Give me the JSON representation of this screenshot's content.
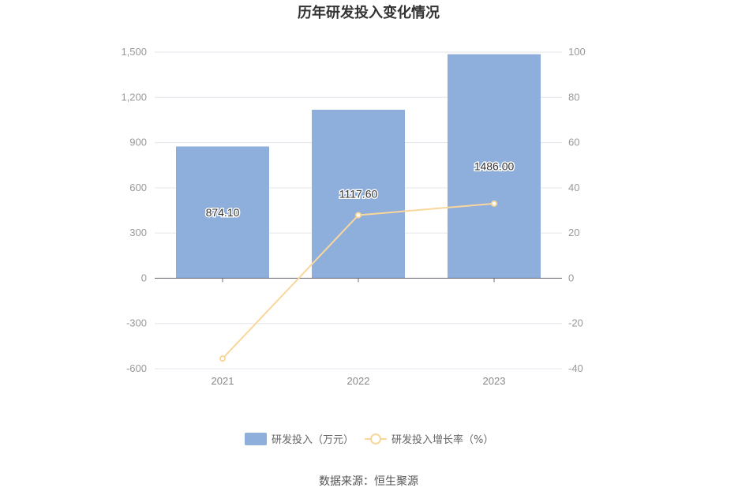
{
  "chart_data": {
    "type": "bar",
    "title": "历年研发投入变化情况",
    "categories": [
      "2021",
      "2022",
      "2023"
    ],
    "series": [
      {
        "name": "研发投入（万元）",
        "type": "bar",
        "axis": "left",
        "values": [
          874.1,
          1117.6,
          1486.0
        ],
        "labels": [
          "874.10",
          "1117.60",
          "1486.00"
        ],
        "color": "#8eaedb"
      },
      {
        "name": "研发投入增长率（%）",
        "type": "line",
        "axis": "right",
        "values": [
          -35.5,
          27.9,
          33.0
        ],
        "color": "#f9d69c"
      }
    ],
    "y_left": {
      "min": -600,
      "max": 1500,
      "ticks": [
        -600,
        -300,
        0,
        300,
        600,
        900,
        1200,
        1500
      ],
      "tick_labels": [
        "-600",
        "-300",
        "0",
        "300",
        "600",
        "900",
        "1,200",
        "1,500"
      ]
    },
    "y_right": {
      "min": -40,
      "max": 100,
      "ticks": [
        -40,
        -20,
        0,
        20,
        40,
        60,
        80,
        100
      ],
      "tick_labels": [
        "-40",
        "-20",
        "0",
        "20",
        "40",
        "60",
        "80",
        "100"
      ]
    },
    "grid": true,
    "legend_position": "bottom",
    "source": "数据来源：恒生聚源"
  }
}
